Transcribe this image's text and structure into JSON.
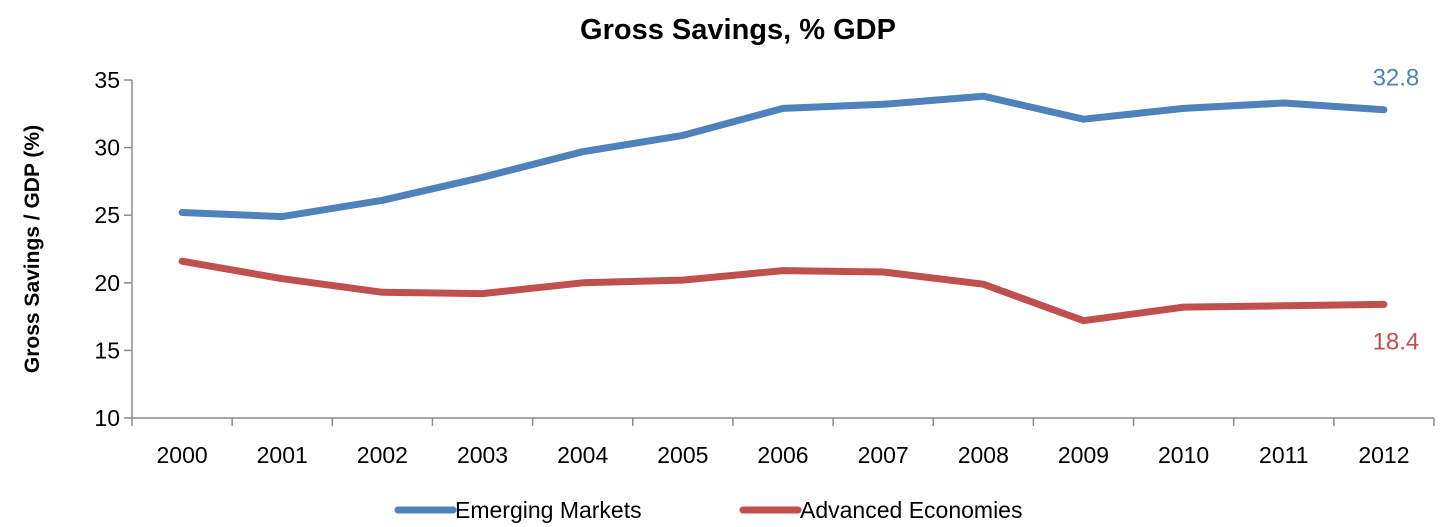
{
  "chart_data": {
    "type": "line",
    "title": "Gross Savings, % GDP",
    "xlabel": "",
    "ylabel": "Gross Savings / GDP (%)",
    "categories": [
      "2000",
      "2001",
      "2002",
      "2003",
      "2004",
      "2005",
      "2006",
      "2007",
      "2008",
      "2009",
      "2010",
      "2011",
      "2012"
    ],
    "ylim": [
      10,
      35
    ],
    "yticks": [
      10,
      15,
      20,
      25,
      30,
      35
    ],
    "grid": false,
    "legend_position": "bottom",
    "series": [
      {
        "name": "Emerging Markets",
        "color": "#4F81BD",
        "values": [
          25.2,
          24.9,
          26.1,
          27.8,
          29.7,
          30.9,
          32.9,
          33.2,
          33.8,
          32.1,
          32.9,
          33.3,
          32.8
        ],
        "end_label": "32.8"
      },
      {
        "name": "Advanced Economies",
        "color": "#C0504D",
        "values": [
          21.6,
          20.3,
          19.3,
          19.2,
          20.0,
          20.2,
          20.9,
          20.8,
          19.9,
          17.2,
          18.2,
          18.3,
          18.4
        ],
        "end_label": "18.4"
      }
    ]
  }
}
